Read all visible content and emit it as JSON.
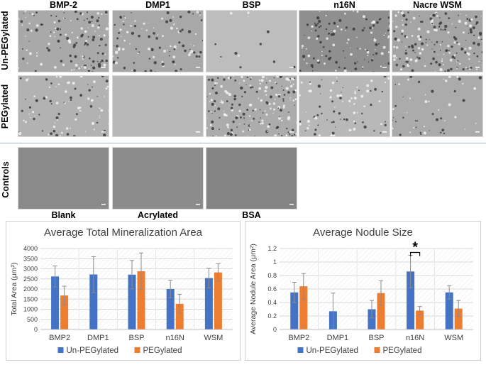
{
  "figure": {
    "column_labels": [
      "BMP-2",
      "DMP1",
      "BSP",
      "n16N",
      "Nacre WSM"
    ],
    "row_labels": [
      "Un-PEGylated",
      "PEGylated",
      "Controls"
    ],
    "control_labels": [
      "Blank",
      "Acrylated",
      "BSA"
    ],
    "tiles": {
      "unpeg": [
        {
          "density": 0.55
        },
        {
          "density": 0.45
        },
        {
          "density": 0.05
        },
        {
          "density": 0.5
        },
        {
          "density": 0.75
        }
      ],
      "peg": [
        {
          "density": 0.35
        },
        {
          "density": 0.0
        },
        {
          "density": 0.8
        },
        {
          "density": 0.35
        },
        {
          "density": 0.2
        }
      ],
      "controls": [
        {
          "density": 0.0
        },
        {
          "density": 0.0
        },
        {
          "density": 0.0
        }
      ]
    },
    "tile_tones": {
      "unpeg": [
        "#a9a9a9",
        "#a8a8a8",
        "#bdbdbd",
        "#8f8f8f",
        "#a5a5a5"
      ],
      "peg": [
        "#b2b2b2",
        "#b8b8b8",
        "#acacac",
        "#b8b8b8",
        "#ababab"
      ],
      "controls": [
        "#8a8a8a",
        "#8c8c8c",
        "#848484"
      ]
    }
  },
  "colors": {
    "series1": "#4472c4",
    "series2": "#ed7d31",
    "grid": "#d9d9d9",
    "divider": "#9fb6d3"
  },
  "chart_data": [
    {
      "type": "bar",
      "title": "Average Total Mineralization Area",
      "xlabel": "",
      "ylabel": "Total Area (μm²)",
      "ylim": [
        0,
        4000
      ],
      "yticks": [
        0,
        500,
        1000,
        1500,
        2000,
        2500,
        3000,
        3500,
        4000
      ],
      "categories": [
        "BMP2",
        "DMP1",
        "BSP",
        "n16N",
        "WSM"
      ],
      "series": [
        {
          "name": "Un-PEGylated",
          "values": [
            2620,
            2720,
            2710,
            2000,
            2540
          ],
          "errors": [
            520,
            880,
            700,
            430,
            480
          ]
        },
        {
          "name": "PEGylated",
          "values": [
            1680,
            0,
            2880,
            1270,
            2820
          ],
          "errors": [
            460,
            0,
            900,
            470,
            430
          ]
        }
      ],
      "legend_position": "bottom"
    },
    {
      "type": "bar",
      "title": "Average Nodule Size",
      "xlabel": "",
      "ylabel": "Average Nodule Area (μm²)",
      "ylim": [
        0,
        1.2
      ],
      "yticks": [
        "0",
        "0.2",
        "0.4",
        "0.6",
        "0.8",
        "1",
        "1.2"
      ],
      "categories": [
        "BMP2",
        "DMP1",
        "BSP",
        "n16N",
        "WSM"
      ],
      "series": [
        {
          "name": "Un-PEGylated",
          "values": [
            0.55,
            0.27,
            0.3,
            0.86,
            0.55
          ],
          "errors": [
            0.15,
            0.27,
            0.13,
            0.24,
            0.1
          ]
        },
        {
          "name": "PEGylated",
          "values": [
            0.64,
            0.0,
            0.54,
            0.28,
            0.31
          ],
          "errors": [
            0.19,
            0.0,
            0.18,
            0.06,
            0.12
          ]
        }
      ],
      "annotations": [
        {
          "text": "*",
          "category": "n16N"
        }
      ],
      "legend_position": "bottom"
    }
  ]
}
